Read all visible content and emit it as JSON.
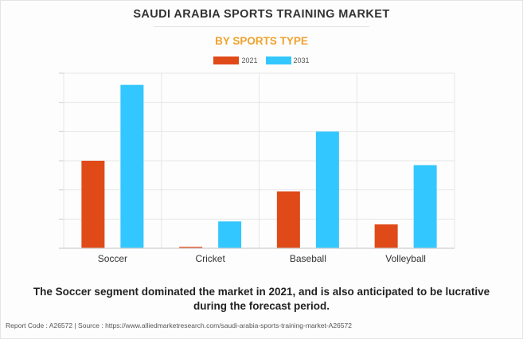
{
  "header": {
    "title": "SAUDI ARABIA SPORTS TRAINING MARKET",
    "subtitle": "BY SPORTS TYPE"
  },
  "caption": {
    "line1": "The Soccer segment dominated the market in 2021, and is also anticipated to be lucrative",
    "line2": "during the forecast period."
  },
  "footer": {
    "text": "Report Code : A26572  |  Source : https://www.alliedmarketresearch.com/saudi-arabia-sports-training-market-A26572"
  },
  "colors": {
    "title": "#333333",
    "subtitle": "#f0a22e",
    "series_2021": "#e04a19",
    "series_2031": "#33c7ff"
  },
  "chart_data": {
    "type": "bar",
    "title": "SAUDI ARABIA SPORTS TRAINING MARKET",
    "subtitle": "BY SPORTS TYPE",
    "xlabel": "",
    "ylabel": "",
    "categories": [
      "Soccer",
      "Cricket",
      "Baseball",
      "Volleyball"
    ],
    "series": [
      {
        "name": "2021",
        "color": "#e04a19",
        "values": [
          3.0,
          0.05,
          1.95,
          0.82
        ]
      },
      {
        "name": "2031",
        "color": "#33c7ff",
        "values": [
          5.6,
          0.92,
          4.0,
          2.85
        ]
      }
    ],
    "ylim": [
      0,
      6
    ],
    "y_tick_labels_shown": false,
    "grid": true,
    "legend_position": "top"
  }
}
